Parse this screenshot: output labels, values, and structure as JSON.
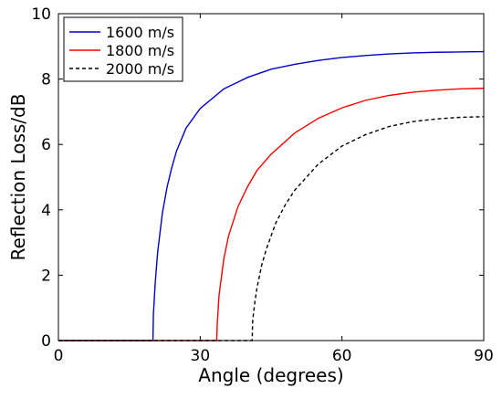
{
  "chart_data": {
    "type": "line",
    "title": "",
    "xlabel": "Angle (degrees)",
    "ylabel": "Reflection Loss/dB",
    "xlim": [
      0,
      90
    ],
    "ylim": [
      0,
      10
    ],
    "xticks": [
      0,
      30,
      60,
      90
    ],
    "yticks": [
      0,
      2,
      4,
      6,
      8,
      10
    ],
    "grid": false,
    "legend_position": "top-left",
    "series": [
      {
        "name": "1600 m/s",
        "color": "#0000cc",
        "style": "solid",
        "x": [
          0,
          20,
          20.1,
          20.5,
          21,
          22,
          23,
          24,
          25,
          27,
          30,
          35,
          40,
          45,
          50,
          55,
          60,
          65,
          70,
          75,
          80,
          85,
          90
        ],
        "y": [
          0,
          0,
          0.8,
          1.8,
          2.7,
          3.9,
          4.7,
          5.3,
          5.8,
          6.5,
          7.1,
          7.7,
          8.05,
          8.3,
          8.45,
          8.57,
          8.66,
          8.72,
          8.77,
          8.8,
          8.82,
          8.83,
          8.84
        ]
      },
      {
        "name": "1800 m/s",
        "color": "#ff0000",
        "style": "solid",
        "x": [
          0,
          33.5,
          33.6,
          34,
          35,
          36,
          38,
          40,
          42,
          45,
          50,
          55,
          60,
          65,
          70,
          75,
          80,
          85,
          90
        ],
        "y": [
          0,
          0,
          0.5,
          1.4,
          2.5,
          3.2,
          4.1,
          4.7,
          5.2,
          5.7,
          6.35,
          6.8,
          7.12,
          7.35,
          7.5,
          7.6,
          7.66,
          7.7,
          7.72
        ]
      },
      {
        "name": "2000 m/s",
        "color": "#000000",
        "style": "dashed",
        "x": [
          0,
          41,
          41.1,
          41.5,
          42,
          43,
          44,
          46,
          48,
          50,
          55,
          60,
          65,
          70,
          75,
          80,
          85,
          90
        ],
        "y": [
          0,
          0,
          0.6,
          1.1,
          1.6,
          2.3,
          2.8,
          3.6,
          4.15,
          4.6,
          5.4,
          5.95,
          6.3,
          6.55,
          6.7,
          6.78,
          6.83,
          6.85
        ]
      }
    ]
  }
}
